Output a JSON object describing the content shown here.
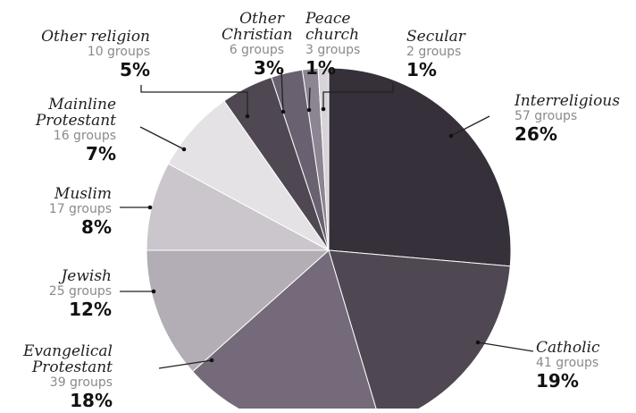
{
  "chart_data": {
    "type": "pie",
    "title": "",
    "slices": [
      {
        "name": "Interreligious",
        "groups": "57 groups",
        "percent": "26%",
        "value": 57,
        "color": "#35303a"
      },
      {
        "name": "Catholic",
        "groups": "41 groups",
        "percent": "19%",
        "value": 41,
        "color": "#4f4853"
      },
      {
        "name": "Evangelical Protestant",
        "groups": "39 groups",
        "percent": "18%",
        "value": 39,
        "color": "#746a79"
      },
      {
        "name": "Jewish",
        "groups": "25 groups",
        "percent": "12%",
        "value": 25,
        "color": "#b3adb5"
      },
      {
        "name": "Muslim",
        "groups": "17 groups",
        "percent": "8%",
        "value": 17,
        "color": "#cbc6cc"
      },
      {
        "name": "Mainline Protestant",
        "groups": "16 groups",
        "percent": "7%",
        "value": 16,
        "color": "#e4e2e5"
      },
      {
        "name": "Other religion",
        "groups": "10 groups",
        "percent": "5%",
        "value": 10,
        "color": "#4f4853"
      },
      {
        "name": "Other Christian",
        "groups": "6 groups",
        "percent": "3%",
        "value": 6,
        "color": "#6a6170"
      },
      {
        "name": "Peace church",
        "groups": "3 groups",
        "percent": "1%",
        "value": 3,
        "color": "#8d8592"
      },
      {
        "name": "Secular",
        "groups": "2 groups",
        "percent": "1%",
        "value": 2,
        "color": "#d7d3d8"
      }
    ]
  }
}
